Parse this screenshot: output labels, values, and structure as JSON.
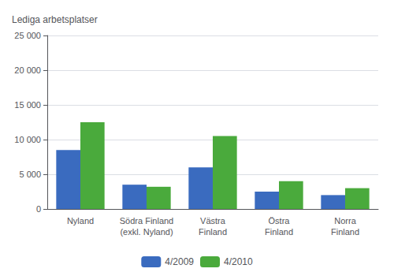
{
  "chart_data": {
    "type": "bar",
    "ylabel": "Lediga arbetsplatser",
    "categories": [
      "Nyland",
      "Södra Finland\n(exkl. Nyland)",
      "Västra\nFinland",
      "Östra\nFinland",
      "Norra\nFinland"
    ],
    "series": [
      {
        "name": "4/2009",
        "color": "#3a6bbf",
        "values": [
          8500,
          3500,
          6000,
          2500,
          2000
        ]
      },
      {
        "name": "4/2010",
        "color": "#4aaa3c",
        "values": [
          12500,
          3200,
          10500,
          4000,
          3000
        ]
      }
    ],
    "ylim": [
      0,
      25000
    ],
    "yticks": [
      0,
      {
        "value": 5000,
        "label": "5 000"
      },
      {
        "value": 10000,
        "label": "10 000"
      },
      {
        "value": 15000,
        "label": "15 000"
      },
      {
        "value": 20000,
        "label": "20 000"
      },
      {
        "value": 25000,
        "label": "25 000"
      }
    ],
    "grid": true,
    "legend": "bottom"
  }
}
